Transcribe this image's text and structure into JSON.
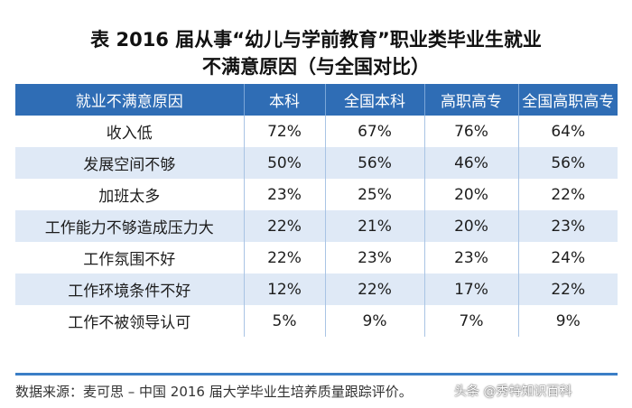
{
  "title": {
    "line1": "表 2016 届从事“幼儿与学前教育”职业类毕业生就业",
    "line2": "不满意原因（与全国对比）"
  },
  "table": {
    "headers": [
      "就业不满意原因",
      "本科",
      "全国本科",
      "高职高专",
      "全国高职高专"
    ],
    "rows": [
      [
        "收入低",
        "72%",
        "67%",
        "76%",
        "64%"
      ],
      [
        "发展空间不够",
        "50%",
        "56%",
        "46%",
        "56%"
      ],
      [
        "加班太多",
        "23%",
        "25%",
        "20%",
        "22%"
      ],
      [
        "工作能力不够造成压力大",
        "22%",
        "21%",
        "20%",
        "23%"
      ],
      [
        "工作氛围不好",
        "22%",
        "23%",
        "23%",
        "24%"
      ],
      [
        "工作环境条件不好",
        "12%",
        "22%",
        "17%",
        "22%"
      ],
      [
        "工作不被领导认可",
        "5%",
        "9%",
        "7%",
        "9%"
      ]
    ]
  },
  "source": "数据来源：麦可思 – 中国 2016 届大学毕业生培养质量跟踪评价。",
  "watermark": "头条 @秀特知识百科",
  "colors": {
    "header_bg": "#2f6db5",
    "stripe_bg": "#dfe9f6"
  }
}
